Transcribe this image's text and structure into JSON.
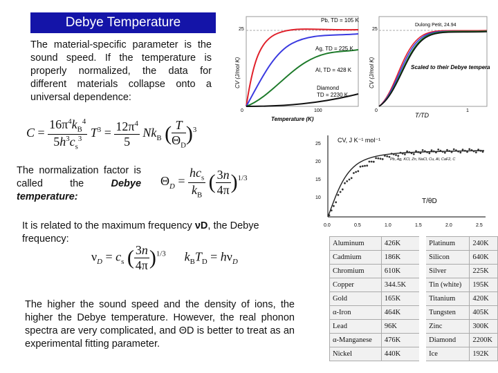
{
  "slide": {
    "title": "Debye Temperature",
    "intro": "The material-specific parameter is the sound speed. If the temperature is properly normalized, the data for different materials collapse onto a universal dependence:",
    "normalization_text_1": "The normalization factor is called the",
    "normalization_text_2": "Debye temperature:",
    "max_freq_text": "It is related to the maximum frequency",
    "max_freq_symbol": "νD",
    "max_freq_text_2": ", the Debye frequency:",
    "closing": "The higher the sound speed and the density of ions, the higher the Debye temperature. However, the real phonon spectra are very complicated, and ΘD is better to treat as an experimental fitting parameter."
  },
  "left_plot": {
    "ylabel": "CV (J/mol K)",
    "xlabel": "Temperature (K)",
    "ytick": "25",
    "xticks": [
      "0",
      "100"
    ],
    "labels": [
      "Pb, TD = 105 K",
      "Ag, TD = 225 K",
      "Al, TD = 428 K",
      "Diamond",
      "TD = 2230 K"
    ],
    "colors": [
      "#e0202a",
      "#3a3ae0",
      "#1d7a2a",
      "#101010"
    ]
  },
  "right_plot": {
    "ylabel": "CV (J/mol K)",
    "xlabel": "T/TD",
    "ytick": "25",
    "xticks": [
      "0",
      "1"
    ],
    "dulong": "Dulong Petit, 24.94",
    "annotation": "Scaled to their Debye temperatures"
  },
  "data_plot": {
    "ylabel": "CV, J K⁻¹ mol⁻¹",
    "xlabel": "T/θD",
    "yticks": [
      "10",
      "15",
      "20",
      "25"
    ],
    "xticks": [
      "0.0",
      "0.5",
      "1.0",
      "1.5",
      "2.0",
      "2.5"
    ],
    "legend": "Pb, Ag, KCl, Zn, NaCl, Cu, Al, CaF2, C"
  },
  "debye_table": {
    "rows": [
      [
        "Aluminum",
        "426K",
        "Platinum",
        "240K"
      ],
      [
        "Cadmium",
        "186K",
        "Silicon",
        "640K"
      ],
      [
        "Chromium",
        "610K",
        "Silver",
        "225K"
      ],
      [
        "Copper",
        "344.5K",
        "Tin (white)",
        "195K"
      ],
      [
        "Gold",
        "165K",
        "Titanium",
        "420K"
      ],
      [
        "α-Iron",
        "464K",
        "Tungsten",
        "405K"
      ],
      [
        "Lead",
        "96K",
        "Zinc",
        "300K"
      ],
      [
        "α-Manganese",
        "476K",
        "Diamond",
        "2200K"
      ],
      [
        "Nickel",
        "440K",
        "Ice",
        "192K"
      ]
    ]
  }
}
